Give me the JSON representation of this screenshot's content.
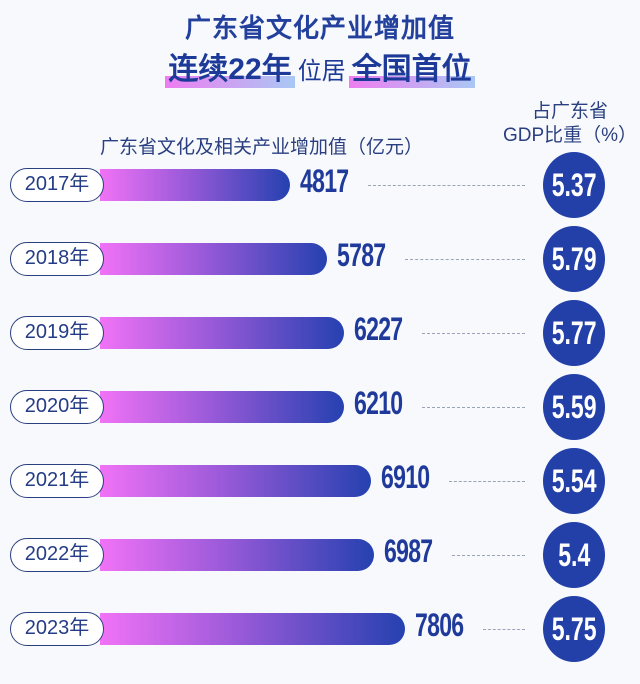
{
  "title": {
    "line1": "广东省文化产业增加值",
    "line2_a": "连续22年",
    "line2_b": "位居",
    "line2_c": "全国首位"
  },
  "chart_data": {
    "type": "bar",
    "orientation": "horizontal",
    "categories": [
      "2017年",
      "2018年",
      "2019年",
      "2020年",
      "2021年",
      "2022年",
      "2023年"
    ],
    "series": [
      {
        "name": "广东省文化及相关产业增加值（亿元）",
        "values": [
          4817,
          5787,
          6227,
          6210,
          6910,
          6987,
          7806
        ]
      },
      {
        "name": "占广东省GDP比重（%）",
        "values": [
          5.37,
          5.79,
          5.77,
          5.59,
          5.54,
          5.4,
          5.75
        ]
      }
    ],
    "value_labels": [
      "4817",
      "5787",
      "6227",
      "6210",
      "6910",
      "6987",
      "7806"
    ],
    "pct_labels": [
      "5.37",
      "5.79",
      "5.77",
      "5.59",
      "5.54",
      "5.4",
      "5.75"
    ],
    "left_label": "广东省文化及相关产业增加值（亿元）",
    "right_label_1": "占广东省",
    "right_label_2": "GDP比重（%）",
    "xlim": [
      0,
      7806
    ]
  },
  "colors": {
    "accent": "#2340a8",
    "bar_start": "#f172f6",
    "bar_end": "#2541b0"
  }
}
